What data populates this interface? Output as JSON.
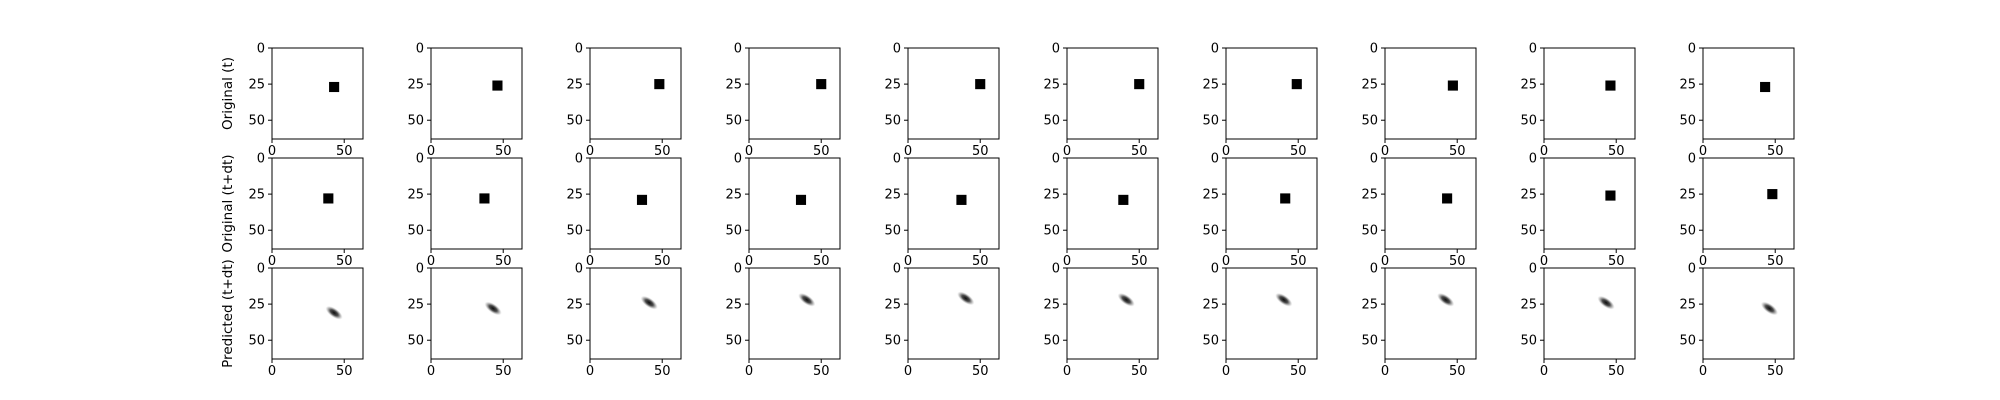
{
  "chart_data": {
    "type": "image-grid",
    "grid": {
      "rows": 3,
      "cols": 10
    },
    "row_labels": [
      "Original (t)",
      "Original (t+dt)",
      "Predicted (t+dt)"
    ],
    "image_extent": {
      "x": [
        0,
        63
      ],
      "y": [
        0,
        63
      ]
    },
    "xticks": [
      "0",
      "50"
    ],
    "yticks": [
      "0",
      "25",
      "50"
    ],
    "colormap": "gray_r",
    "rows": [
      {
        "label": "Original (t)",
        "kind": "square",
        "square_size": 7,
        "panels": [
          {
            "cx": 43,
            "cy": 27
          },
          {
            "cx": 46,
            "cy": 26
          },
          {
            "cx": 48,
            "cy": 25
          },
          {
            "cx": 50,
            "cy": 25
          },
          {
            "cx": 50,
            "cy": 25
          },
          {
            "cx": 50,
            "cy": 25
          },
          {
            "cx": 49,
            "cy": 25
          },
          {
            "cx": 47,
            "cy": 26
          },
          {
            "cx": 46,
            "cy": 26
          },
          {
            "cx": 43,
            "cy": 27
          }
        ]
      },
      {
        "label": "Original (t+dt)",
        "kind": "square",
        "square_size": 7,
        "panels": [
          {
            "cx": 39,
            "cy": 28
          },
          {
            "cx": 37,
            "cy": 28
          },
          {
            "cx": 36,
            "cy": 29
          },
          {
            "cx": 36,
            "cy": 29
          },
          {
            "cx": 37,
            "cy": 29
          },
          {
            "cx": 39,
            "cy": 29
          },
          {
            "cx": 41,
            "cy": 28
          },
          {
            "cx": 43,
            "cy": 28
          },
          {
            "cx": 46,
            "cy": 26
          },
          {
            "cx": 48,
            "cy": 25
          }
        ]
      },
      {
        "label": "Predicted (t+dt)",
        "kind": "blob",
        "panels": [
          {
            "cx": 43,
            "cy": 31
          },
          {
            "cx": 43,
            "cy": 28
          },
          {
            "cx": 41,
            "cy": 24
          },
          {
            "cx": 40,
            "cy": 22
          },
          {
            "cx": 40,
            "cy": 21
          },
          {
            "cx": 41,
            "cy": 22
          },
          {
            "cx": 40,
            "cy": 22
          },
          {
            "cx": 42,
            "cy": 22
          },
          {
            "cx": 43,
            "cy": 24
          },
          {
            "cx": 46,
            "cy": 28
          }
        ]
      }
    ]
  }
}
